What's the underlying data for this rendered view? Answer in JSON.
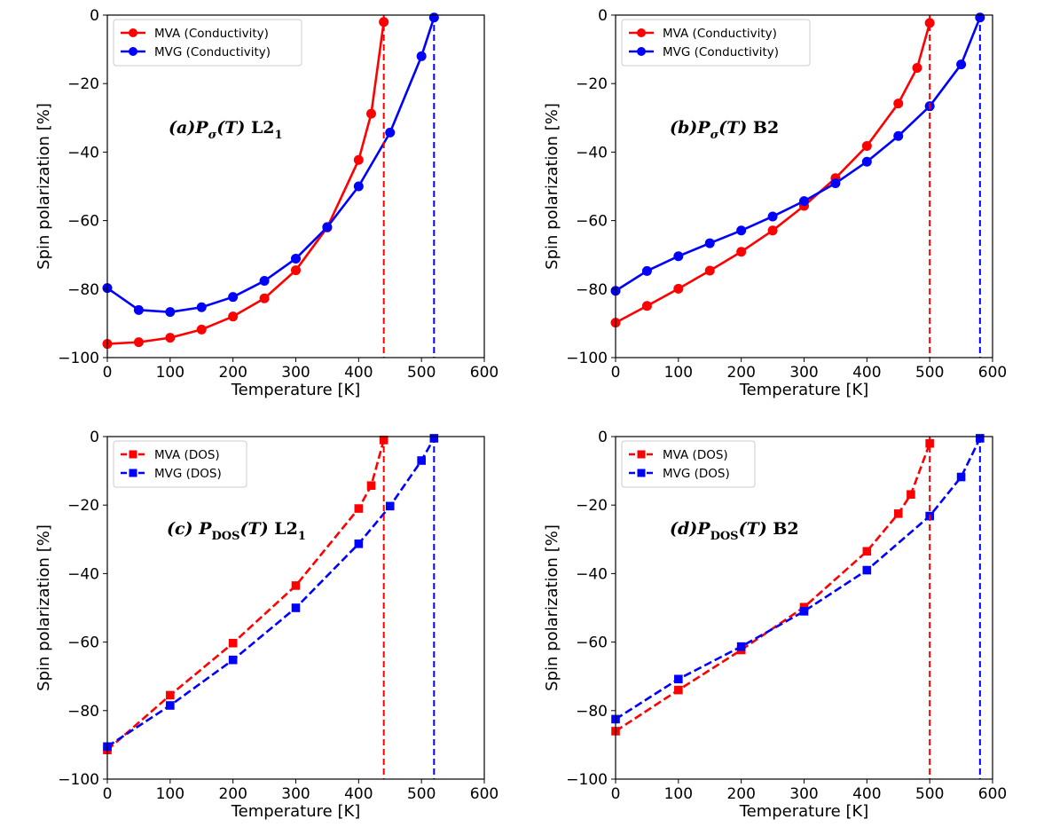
{
  "colors": {
    "mva": "#ff0000",
    "mvg": "#0000ff",
    "frame": "#000000",
    "legend_border": "#cccccc"
  },
  "chart_data": [
    {
      "id": "a",
      "type": "line",
      "annotation": {
        "prefix": "(a)",
        "symbol": "P",
        "sub": "σ",
        "arg": "(T)",
        "phase": "L2",
        "phase_sub": "1"
      },
      "xlabel": "Temperature [K]",
      "ylabel": "Spin polarization [%]",
      "xlim": [
        0,
        600
      ],
      "ylim": [
        -100,
        0
      ],
      "xticks": [
        0,
        100,
        200,
        300,
        400,
        500,
        600
      ],
      "yticks": [
        0,
        -20,
        -40,
        -60,
        -80,
        -100
      ],
      "xtick_labels": [
        "0",
        "100",
        "200",
        "300",
        "400",
        "500",
        "600"
      ],
      "ytick_labels": [
        "0",
        "−20",
        "−40",
        "−60",
        "−80",
        "−100"
      ],
      "grid": false,
      "legend_position": "top-left",
      "series": [
        {
          "name": "MVA (Conductivity)",
          "color": "#ff0000",
          "marker": "circle",
          "linestyle": "solid",
          "x": [
            0,
            50,
            100,
            150,
            200,
            250,
            300,
            350,
            400,
            420,
            440
          ],
          "y": [
            -96,
            -95.5,
            -94.2,
            -91.8,
            -88,
            -82.7,
            -74.5,
            -62,
            -42.3,
            -28.8,
            -2
          ]
        },
        {
          "name": "MVG (Conductivity)",
          "color": "#0000ff",
          "marker": "circle",
          "linestyle": "solid",
          "x": [
            0,
            50,
            100,
            150,
            200,
            250,
            300,
            350,
            400,
            450,
            500,
            520
          ],
          "y": [
            -79.7,
            -86.1,
            -86.7,
            -85.3,
            -82.3,
            -77.6,
            -71.1,
            -61.9,
            -50,
            -34.3,
            -12,
            -0.7
          ]
        }
      ],
      "vlines": [
        {
          "x": 440,
          "color": "#ff0000"
        },
        {
          "x": 520,
          "color": "#0000ff"
        }
      ]
    },
    {
      "id": "b",
      "type": "line",
      "annotation": {
        "prefix": "(b)",
        "symbol": "P",
        "sub": "σ",
        "arg": "(T)",
        "phase": "B2",
        "phase_sub": ""
      },
      "xlabel": "Temperature [K]",
      "ylabel": "Spin polarization [%]",
      "xlim": [
        0,
        600
      ],
      "ylim": [
        -100,
        0
      ],
      "xticks": [
        0,
        100,
        200,
        300,
        400,
        500,
        600
      ],
      "yticks": [
        0,
        -20,
        -40,
        -60,
        -80,
        -100
      ],
      "xtick_labels": [
        "0",
        "100",
        "200",
        "300",
        "400",
        "500",
        "600"
      ],
      "ytick_labels": [
        "0",
        "−20",
        "−40",
        "−60",
        "−80",
        "−100"
      ],
      "grid": false,
      "legend_position": "top-left",
      "series": [
        {
          "name": "MVA (Conductivity)",
          "color": "#ff0000",
          "marker": "circle",
          "linestyle": "solid",
          "x": [
            0,
            50,
            100,
            150,
            200,
            250,
            300,
            350,
            400,
            450,
            480,
            500
          ],
          "y": [
            -89.8,
            -84.9,
            -79.9,
            -74.6,
            -69.1,
            -62.9,
            -55.7,
            -47.6,
            -38.2,
            -25.8,
            -15.4,
            -2.3
          ]
        },
        {
          "name": "MVG (Conductivity)",
          "color": "#0000ff",
          "marker": "circle",
          "linestyle": "solid",
          "x": [
            0,
            50,
            100,
            150,
            200,
            250,
            300,
            350,
            400,
            450,
            500,
            550,
            580
          ],
          "y": [
            -80.5,
            -74.7,
            -70.4,
            -66.6,
            -62.9,
            -58.8,
            -54.3,
            -49.1,
            -42.8,
            -35.3,
            -26.6,
            -14.4,
            -0.7
          ]
        }
      ],
      "vlines": [
        {
          "x": 500,
          "color": "#ff0000"
        },
        {
          "x": 580,
          "color": "#0000ff"
        }
      ]
    },
    {
      "id": "c",
      "type": "line",
      "annotation": {
        "prefix": "(c) ",
        "symbol": "P",
        "sub": "DOS",
        "arg": "(T)",
        "phase": "L2",
        "phase_sub": "1"
      },
      "xlabel": "Temperature [K]",
      "ylabel": "Spin polarization [%]",
      "xlim": [
        0,
        600
      ],
      "ylim": [
        -100,
        0
      ],
      "xticks": [
        0,
        100,
        200,
        300,
        400,
        500,
        600
      ],
      "yticks": [
        0,
        -20,
        -40,
        -60,
        -80,
        -100
      ],
      "xtick_labels": [
        "0",
        "100",
        "200",
        "300",
        "400",
        "500",
        "600"
      ],
      "ytick_labels": [
        "0",
        "−20",
        "−40",
        "−60",
        "−80",
        "−100"
      ],
      "grid": false,
      "legend_position": "top-left",
      "series": [
        {
          "name": "MVA (DOS)",
          "color": "#ff0000",
          "marker": "square",
          "linestyle": "dashed",
          "x": [
            0,
            100,
            200,
            300,
            400,
            420,
            440
          ],
          "y": [
            -91.5,
            -75.5,
            -60.3,
            -43.5,
            -21,
            -14.3,
            -1
          ]
        },
        {
          "name": "MVG (DOS)",
          "color": "#0000ff",
          "marker": "square",
          "linestyle": "dashed",
          "x": [
            0,
            100,
            200,
            300,
            400,
            450,
            500,
            520
          ],
          "y": [
            -90.5,
            -78.5,
            -65.2,
            -50,
            -31.3,
            -20.3,
            -7,
            -0.5
          ]
        }
      ],
      "vlines": [
        {
          "x": 440,
          "color": "#ff0000"
        },
        {
          "x": 520,
          "color": "#0000ff"
        }
      ]
    },
    {
      "id": "d",
      "type": "line",
      "annotation": {
        "prefix": "(d)",
        "symbol": "P",
        "sub": "DOS",
        "arg": "(T)",
        "phase": "B2",
        "phase_sub": ""
      },
      "xlabel": "Temperature [K]",
      "ylabel": "Spin polarization [%]",
      "xlim": [
        0,
        600
      ],
      "ylim": [
        -100,
        0
      ],
      "xticks": [
        0,
        100,
        200,
        300,
        400,
        500,
        600
      ],
      "yticks": [
        0,
        -20,
        -40,
        -60,
        -80,
        -100
      ],
      "xtick_labels": [
        "0",
        "100",
        "200",
        "300",
        "400",
        "500",
        "600"
      ],
      "ytick_labels": [
        "0",
        "−20",
        "−40",
        "−60",
        "−80",
        "−100"
      ],
      "grid": false,
      "legend_position": "top-left",
      "series": [
        {
          "name": "MVA (DOS)",
          "color": "#ff0000",
          "marker": "square",
          "linestyle": "dashed",
          "x": [
            0,
            100,
            200,
            300,
            400,
            450,
            470,
            500
          ],
          "y": [
            -86,
            -74,
            -62.3,
            -49.8,
            -33.5,
            -22.5,
            -16.9,
            -2
          ]
        },
        {
          "name": "MVG (DOS)",
          "color": "#0000ff",
          "marker": "square",
          "linestyle": "dashed",
          "x": [
            0,
            100,
            200,
            300,
            400,
            500,
            550,
            580
          ],
          "y": [
            -82.5,
            -70.8,
            -61.3,
            -51,
            -39,
            -23.2,
            -11.8,
            -0.5
          ]
        }
      ],
      "vlines": [
        {
          "x": 500,
          "color": "#ff0000"
        },
        {
          "x": 580,
          "color": "#0000ff"
        }
      ]
    }
  ]
}
